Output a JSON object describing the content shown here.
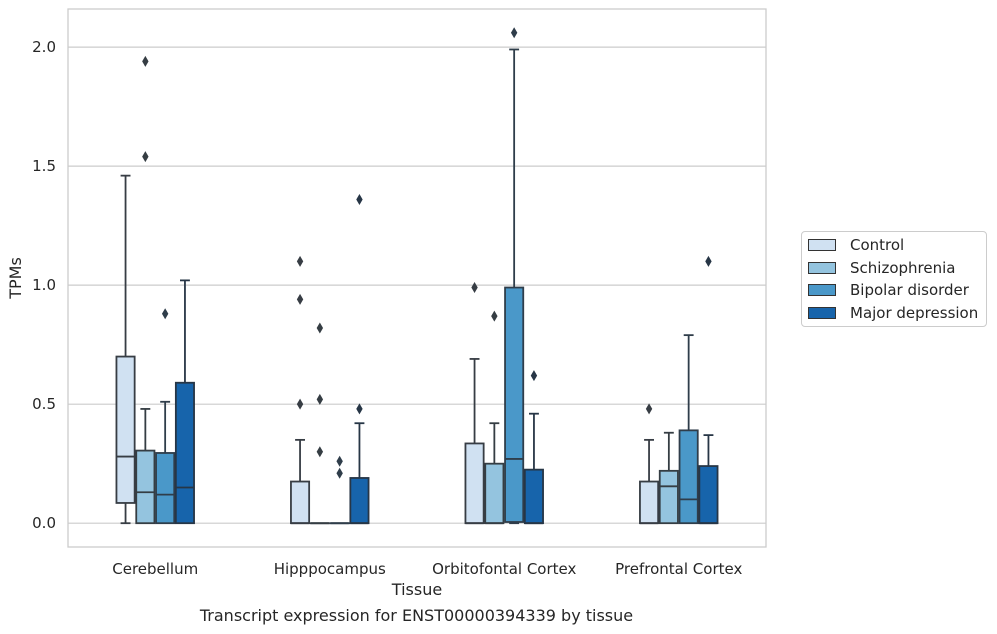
{
  "caption": "Transcript expression for ENST00000394339 by tissue",
  "chart_data": {
    "type": "box",
    "xlabel": "Tissue",
    "ylabel": "TPMs",
    "ylim": [
      -0.1,
      2.16
    ],
    "yticks": [
      "0.0",
      "0.5",
      "1.0",
      "1.5",
      "2.0"
    ],
    "grid": "horizontal",
    "legend_position": "right",
    "categories": [
      "Cerebellum",
      "Hipppocampus",
      "Orbitofontal Cortex",
      "Prefrontal Cortex"
    ],
    "series": [
      {
        "name": "Control",
        "color": "#d0e1f2",
        "boxes": [
          {
            "whislo": 0.0,
            "q1": 0.085,
            "med": 0.28,
            "q3": 0.7,
            "whishi": 1.46,
            "fliers": []
          },
          {
            "whislo": 0.0,
            "q1": 0.0,
            "med": 0.0,
            "q3": 0.175,
            "whishi": 0.35,
            "fliers": [
              0.5,
              0.94,
              1.1
            ]
          },
          {
            "whislo": 0.0,
            "q1": 0.0,
            "med": 0.0,
            "q3": 0.335,
            "whishi": 0.69,
            "fliers": [
              0.99
            ]
          },
          {
            "whislo": 0.0,
            "q1": 0.0,
            "med": 0.0,
            "q3": 0.175,
            "whishi": 0.35,
            "fliers": [
              0.48
            ]
          }
        ]
      },
      {
        "name": "Schizophrenia",
        "color": "#94c4df",
        "boxes": [
          {
            "whislo": 0.0,
            "q1": 0.0,
            "med": 0.13,
            "q3": 0.305,
            "whishi": 0.48,
            "fliers": [
              1.54,
              1.94
            ]
          },
          {
            "whislo": 0.0,
            "q1": 0.0,
            "med": 0.0,
            "q3": 0.0,
            "whishi": 0.0,
            "fliers": [
              0.3,
              0.52,
              0.82
            ]
          },
          {
            "whislo": 0.0,
            "q1": 0.0,
            "med": 0.0,
            "q3": 0.25,
            "whishi": 0.42,
            "fliers": [
              0.87
            ]
          },
          {
            "whislo": 0.0,
            "q1": 0.0,
            "med": 0.155,
            "q3": 0.22,
            "whishi": 0.38,
            "fliers": []
          }
        ]
      },
      {
        "name": "Bipolar disorder",
        "color": "#4a98c9",
        "boxes": [
          {
            "whislo": 0.0,
            "q1": 0.0,
            "med": 0.12,
            "q3": 0.295,
            "whishi": 0.51,
            "fliers": [
              0.88
            ]
          },
          {
            "whislo": 0.0,
            "q1": 0.0,
            "med": 0.0,
            "q3": 0.0,
            "whishi": 0.0,
            "fliers": [
              0.21,
              0.26
            ]
          },
          {
            "whislo": 0.0,
            "q1": 0.005,
            "med": 0.27,
            "q3": 0.99,
            "whishi": 1.99,
            "fliers": [
              2.06
            ]
          },
          {
            "whislo": 0.0,
            "q1": 0.0,
            "med": 0.1,
            "q3": 0.39,
            "whishi": 0.79,
            "fliers": []
          }
        ]
      },
      {
        "name": "Major depression",
        "color": "#1764ab",
        "boxes": [
          {
            "whislo": 0.0,
            "q1": 0.0,
            "med": 0.15,
            "q3": 0.59,
            "whishi": 1.02,
            "fliers": []
          },
          {
            "whislo": 0.0,
            "q1": 0.0,
            "med": 0.0,
            "q3": 0.19,
            "whishi": 0.42,
            "fliers": [
              0.48,
              1.36
            ]
          },
          {
            "whislo": 0.0,
            "q1": 0.0,
            "med": 0.0,
            "q3": 0.225,
            "whishi": 0.46,
            "fliers": [
              0.62
            ]
          },
          {
            "whislo": 0.0,
            "q1": 0.0,
            "med": 0.0,
            "q3": 0.24,
            "whishi": 0.37,
            "fliers": [
              1.1
            ]
          }
        ]
      }
    ]
  }
}
